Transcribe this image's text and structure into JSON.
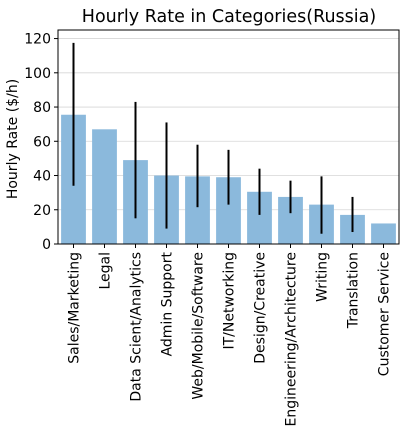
{
  "chart_data": {
    "type": "bar",
    "title": "Hourly Rate in Categories(Russia)",
    "xlabel": "",
    "ylabel": "Hourly Rate ($/h)",
    "ylim": [
      0,
      125
    ],
    "yticks": [
      0,
      20,
      40,
      60,
      80,
      100,
      120
    ],
    "grid": "y",
    "categories": [
      "Sales/Marketing",
      "Legal",
      "Data Scient/Analytics",
      "Admin Support",
      "Web/Mobile/Software",
      "IT/Networking",
      "Design/Creative",
      "Engineering/Architecture",
      "Writing",
      "Translation",
      "Customer Service"
    ],
    "values": [
      75.5,
      67,
      49,
      40,
      39.5,
      39,
      30.5,
      27.5,
      23,
      17,
      12
    ],
    "error_low": [
      34,
      null,
      15,
      9,
      21.5,
      23,
      17,
      18,
      6,
      7,
      null
    ],
    "error_high": [
      117.5,
      null,
      83,
      71,
      58,
      55,
      44,
      37,
      39.5,
      27.5,
      null
    ],
    "colors": {
      "bar": "#8bb9dc",
      "error": "#000000",
      "grid": "#d6d6d6"
    }
  }
}
